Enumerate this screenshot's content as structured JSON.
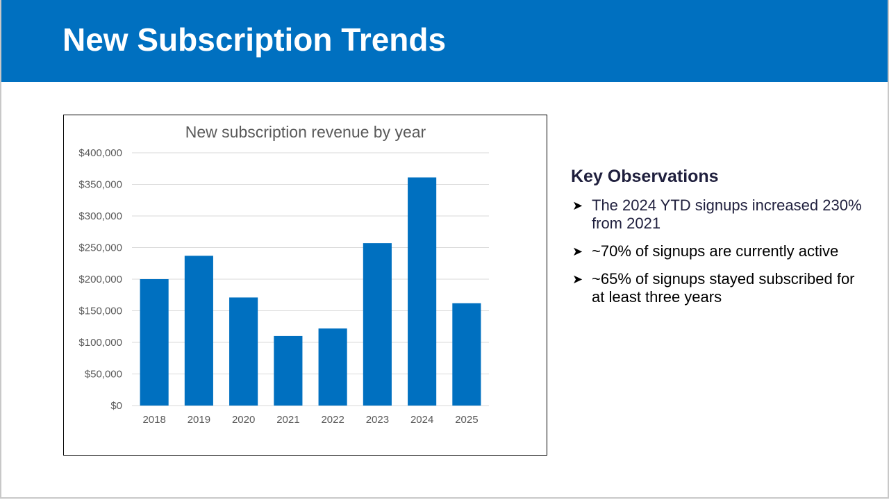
{
  "slide": {
    "title": "New Subscription Trends"
  },
  "observations": {
    "heading": "Key Observations",
    "bullet_icon": "arrowhead-bullet-icon",
    "items": [
      "The 2024 YTD signups increased 230% from 2021",
      "~70% of signups are currently active",
      "~65% of signups stayed subscribed for at least three years"
    ]
  },
  "colors": {
    "header_bg": "#0070c0",
    "bar": "#0070c0",
    "gridline": "#d9d9d9",
    "axis_text": "#595959"
  },
  "chart_data": {
    "type": "bar",
    "title": "New subscription revenue by year",
    "categories": [
      "2018",
      "2019",
      "2020",
      "2021",
      "2022",
      "2023",
      "2024",
      "2025"
    ],
    "values": [
      200000,
      237000,
      171000,
      110000,
      122000,
      257000,
      361000,
      162000
    ],
    "ylim": [
      0,
      400000
    ],
    "yticks": [
      0,
      50000,
      100000,
      150000,
      200000,
      250000,
      300000,
      350000,
      400000
    ],
    "ytick_labels": [
      "$0",
      "$50,000",
      "$100,000",
      "$150,000",
      "$200,000",
      "$250,000",
      "$300,000",
      "$350,000",
      "$400,000"
    ],
    "xlabel": "",
    "ylabel": "",
    "grid": true
  }
}
